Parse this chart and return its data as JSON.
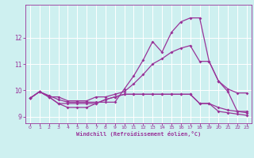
{
  "xlabel": "Windchill (Refroidissement éolien,°C)",
  "background_color": "#cef0f0",
  "grid_color": "#aadddd",
  "line_color": "#993399",
  "xlim": [
    -0.5,
    23.5
  ],
  "ylim": [
    8.75,
    13.25
  ],
  "yticks": [
    9,
    10,
    11,
    12
  ],
  "xticks": [
    0,
    1,
    2,
    3,
    4,
    5,
    6,
    7,
    8,
    9,
    10,
    11,
    12,
    13,
    14,
    15,
    16,
    17,
    18,
    19,
    20,
    21,
    22,
    23
  ],
  "line1_x": [
    0,
    1,
    2,
    3,
    4,
    5,
    6,
    7,
    8,
    9,
    10,
    11,
    12,
    13,
    14,
    15,
    16,
    17,
    18,
    19,
    20,
    21,
    22,
    23
  ],
  "line1_y": [
    9.7,
    9.95,
    9.8,
    9.65,
    9.55,
    9.55,
    9.55,
    9.55,
    9.55,
    9.55,
    10.05,
    10.55,
    11.15,
    11.85,
    11.45,
    12.2,
    12.6,
    12.75,
    12.75,
    11.1,
    10.35,
    9.95,
    9.2,
    9.2
  ],
  "line2_x": [
    0,
    1,
    2,
    3,
    4,
    5,
    6,
    7,
    8,
    9,
    10,
    11,
    12,
    13,
    14,
    15,
    16,
    17,
    18,
    19,
    20,
    21,
    22,
    23
  ],
  "line2_y": [
    9.7,
    9.95,
    9.75,
    9.75,
    9.6,
    9.6,
    9.6,
    9.75,
    9.75,
    9.85,
    9.95,
    10.25,
    10.6,
    11.0,
    11.2,
    11.45,
    11.6,
    11.7,
    11.1,
    11.1,
    10.35,
    10.05,
    9.9,
    9.9
  ],
  "line3_x": [
    0,
    1,
    2,
    3,
    4,
    5,
    6,
    7,
    8,
    9,
    10,
    11,
    12,
    13,
    14,
    15,
    16,
    17,
    18,
    19,
    20,
    21,
    22,
    23
  ],
  "line3_y": [
    9.7,
    9.95,
    9.75,
    9.5,
    9.5,
    9.5,
    9.5,
    9.5,
    9.65,
    9.75,
    9.85,
    9.85,
    9.85,
    9.85,
    9.85,
    9.85,
    9.85,
    9.85,
    9.5,
    9.5,
    9.35,
    9.25,
    9.2,
    9.15
  ],
  "line4_x": [
    0,
    1,
    2,
    3,
    4,
    5,
    6,
    7,
    8,
    9,
    10,
    11,
    12,
    13,
    14,
    15,
    16,
    17,
    18,
    19,
    20,
    21,
    22,
    23
  ],
  "line4_y": [
    9.7,
    9.95,
    9.75,
    9.5,
    9.35,
    9.35,
    9.35,
    9.5,
    9.65,
    9.75,
    9.85,
    9.85,
    9.85,
    9.85,
    9.85,
    9.85,
    9.85,
    9.85,
    9.5,
    9.5,
    9.2,
    9.15,
    9.1,
    9.05
  ]
}
